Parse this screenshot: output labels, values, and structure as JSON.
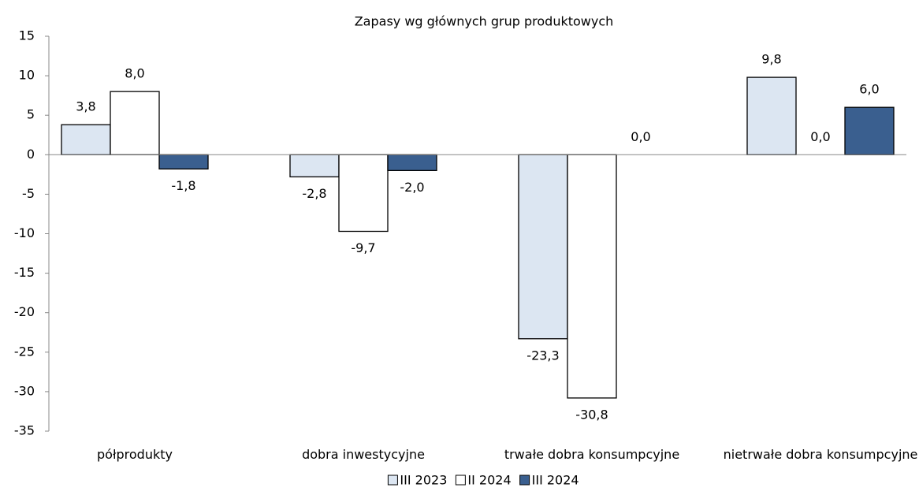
{
  "chart_data": {
    "type": "bar",
    "title": "Zapasy wg głównych grup produktowych",
    "categories": [
      "półprodukty",
      "dobra inwestycyjne",
      "trwałe dobra konsumpcyjne",
      "nietrwałe dobra konsumpcyjne"
    ],
    "series": [
      {
        "name": "III 2023",
        "color": "#dce6f2",
        "values": [
          3.8,
          -2.8,
          -23.3,
          9.8
        ],
        "value_labels": [
          "3,8",
          "-2,8",
          "-23,3",
          "9,8"
        ]
      },
      {
        "name": "II 2024",
        "color": "#ffffff",
        "values": [
          8.0,
          -9.7,
          -30.8,
          0.0
        ],
        "value_labels": [
          "8,0",
          "-9,7",
          "-30,8",
          "0,0"
        ]
      },
      {
        "name": "III 2024",
        "color": "#3a5f8f",
        "values": [
          -1.8,
          -2.0,
          0.0,
          6.0
        ],
        "value_labels": [
          "-1,8",
          "-2,0",
          "0,0",
          "6,0"
        ]
      }
    ],
    "ylim": [
      -35,
      15
    ],
    "yticks": [
      -35,
      -30,
      -25,
      -20,
      -15,
      -10,
      -5,
      0,
      5,
      10,
      15
    ],
    "legend": "bottom"
  }
}
